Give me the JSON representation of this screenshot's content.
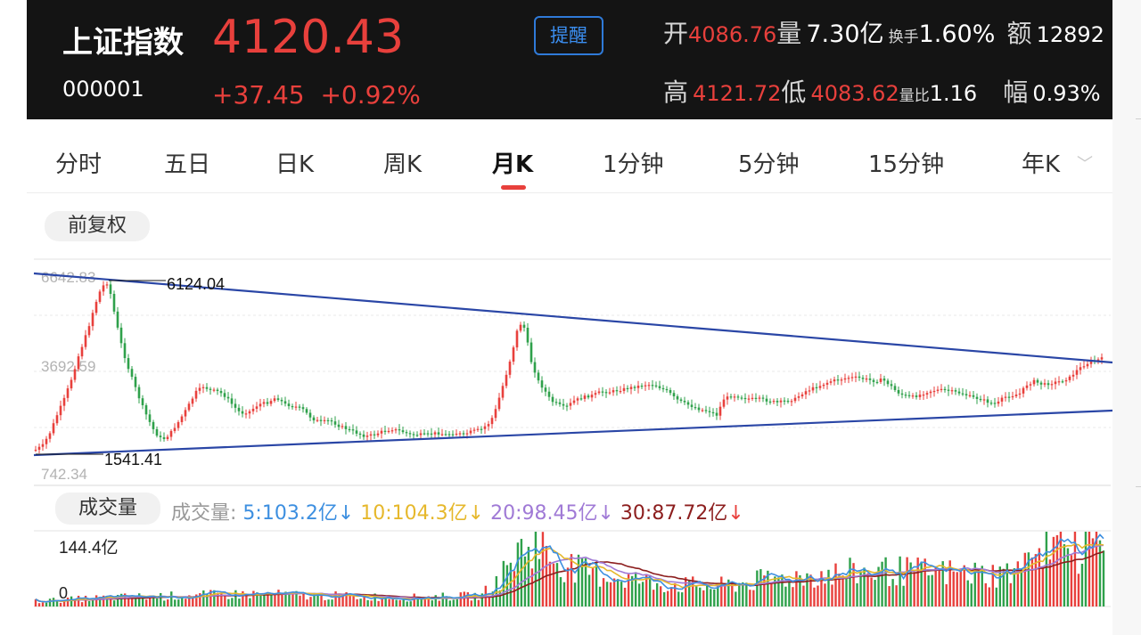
{
  "header": {
    "name": "上证指数",
    "code": "000001",
    "price": "4120.43",
    "change": "+37.45",
    "change_pct": "+0.92%",
    "remind": "提醒",
    "open_label": "开",
    "open": "4086.76",
    "volume_label": "量",
    "volume": "7.30亿",
    "turnover_label": "换手",
    "turnover": "1.60%",
    "amount_label": "额",
    "amount": "12892",
    "high_label": "高",
    "high": "4121.72",
    "low_label": "低",
    "low": "4083.62",
    "vol_ratio_label": "量比",
    "vol_ratio": "1.16",
    "amplitude_label": "幅",
    "amplitude": "0.93%"
  },
  "tabs": [
    "分时",
    "五日",
    "日K",
    "周K",
    "月K",
    "1分钟",
    "5分钟",
    "15分钟",
    "年K"
  ],
  "active_tab": "月K",
  "price_chart": {
    "adjust_label": "前复权",
    "axis_top": "6642.83",
    "axis_mid": "3692.59",
    "axis_bottom": "742.34",
    "peak_label": "6124.04",
    "trough_label": "1541.41"
  },
  "volume_chart": {
    "pill": "成交量",
    "legend_prefix": "成交量:",
    "ma5": "5:103.2亿",
    "ma10": "10:104.3亿",
    "ma20": "20:98.45亿",
    "ma30": "30:87.72亿",
    "down_arrow": "↓",
    "axis_top": "144.4亿",
    "axis_zero": "0"
  },
  "colors": {
    "up": "#e8403c",
    "down": "#2fa14b",
    "trendline": "#2a46a6",
    "ma5": "#3d8fe0",
    "ma10": "#e6b82c",
    "ma20": "#a07ad6",
    "ma30": "#8c1e1e"
  }
}
